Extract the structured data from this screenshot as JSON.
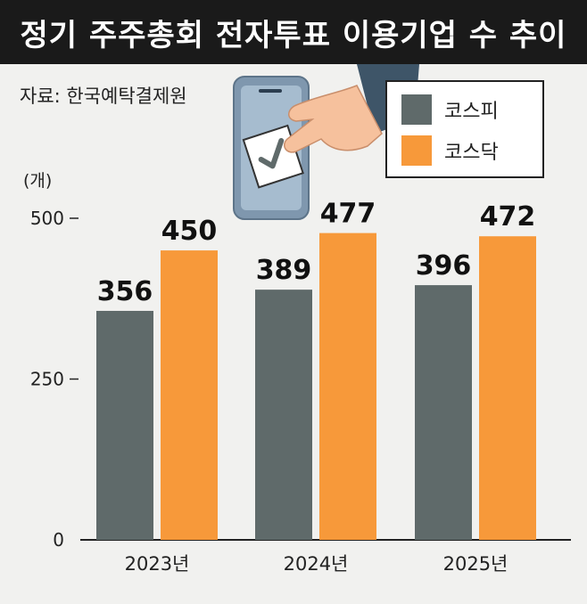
{
  "title": "정기 주주총회 전자투표 이용기업 수 추이",
  "source": "자료: 한국예탁결제원",
  "colors": {
    "kospi": "#5f6a6a",
    "kosdaq": "#f7993a"
  },
  "chart_data": {
    "type": "bar",
    "title": "정기 주주총회 전자투표 이용기업 수 추이",
    "ylabel": "(개)",
    "categories": [
      "2023년",
      "2024년",
      "2025년"
    ],
    "series": [
      {
        "name": "코스피",
        "values": [
          356,
          389,
          396
        ]
      },
      {
        "name": "코스닥",
        "values": [
          450,
          477,
          472
        ]
      }
    ],
    "yticks": [
      0,
      250,
      500
    ],
    "ylim": [
      0,
      500
    ],
    "legend": "top-right",
    "grid": false
  }
}
